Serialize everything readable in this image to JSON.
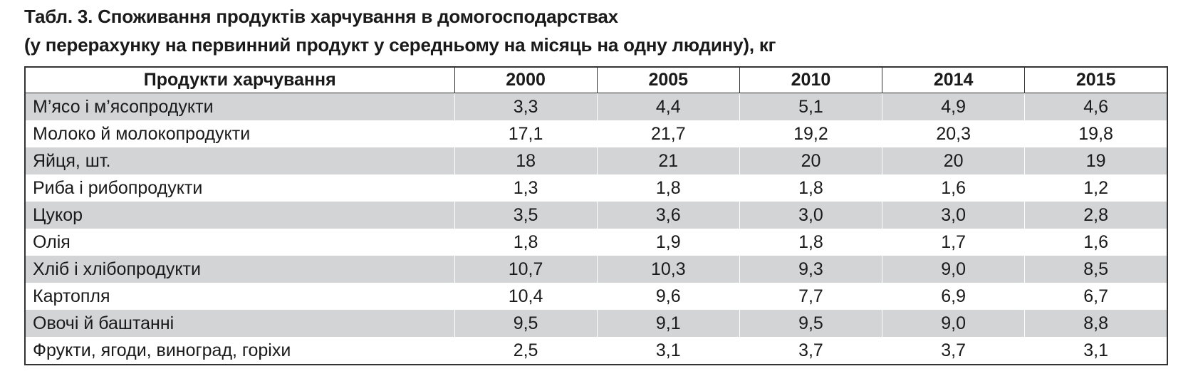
{
  "title_line1": "Табл. 3. Споживання продуктів харчування в домогосподарствах",
  "title_line2": "(у перерахунку на первинний продукт у середньому на місяць на одну людину), кг",
  "header": [
    "Продукти харчування",
    "2000",
    "2005",
    "2010",
    "2014",
    "2015"
  ],
  "rows": [
    [
      "М’ясо і м’ясопродукти",
      "3,3",
      "4,4",
      "5,1",
      "4,9",
      "4,6"
    ],
    [
      "Молоко й молокопродукти",
      "17,1",
      "21,7",
      "19,2",
      "20,3",
      "19,8"
    ],
    [
      "Яйця, шт.",
      "18",
      "21",
      "20",
      "20",
      "19"
    ],
    [
      "Риба і рибопродукти",
      "1,3",
      "1,8",
      "1,8",
      "1,6",
      "1,2"
    ],
    [
      "Цукор",
      "3,5",
      "3,6",
      "3,0",
      "3,0",
      "2,8"
    ],
    [
      "Олія",
      "1,8",
      "1,9",
      "1,8",
      "1,7",
      "1,6"
    ],
    [
      "Хліб і хлібопродукти",
      "10,7",
      "10,3",
      "9,3",
      "9,0",
      "8,5"
    ],
    [
      "Картопля",
      "10,4",
      "9,6",
      "7,7",
      "6,9",
      "6,7"
    ],
    [
      "Овочі й баштанні",
      "9,5",
      "9,1",
      "9,5",
      "9,0",
      "8,8"
    ],
    [
      "Фрукти, ягоди, виноград, горіхи",
      "2,5",
      "3,1",
      "3,7",
      "3,7",
      "3,1"
    ]
  ],
  "colors": {
    "stripe": "#d3d4d6",
    "border": "#333333"
  }
}
